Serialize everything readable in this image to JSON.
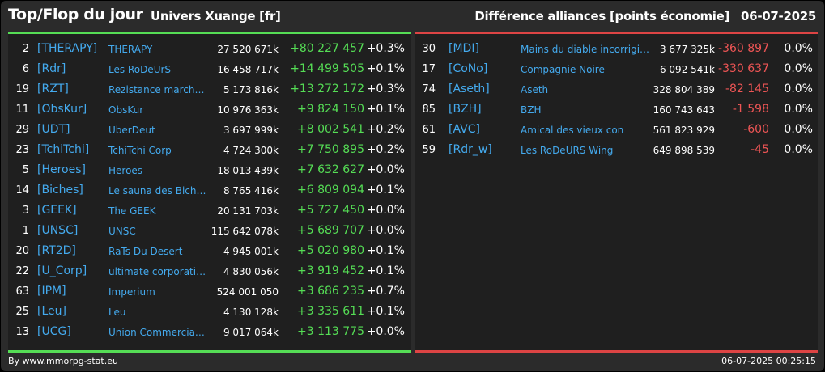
{
  "header": {
    "title": "Top/Flop du jour",
    "universe": "Univers Xuange [fr]",
    "subtitle": "Différence alliances [points économie]",
    "date": "06-07-2025"
  },
  "colors": {
    "top_accent": "#55dd55",
    "flop_accent": "#dd4444",
    "tag_link": "#44aaee",
    "positive": "#55dd55",
    "negative": "#ee5555"
  },
  "top": [
    {
      "rank": "2",
      "tag": "[THERAPY]",
      "name": "THERAPY",
      "points": "27 520 671k",
      "diff": "+80 227 457",
      "pct": "+0.3%"
    },
    {
      "rank": "6",
      "tag": "[Rdr]",
      "name": "Les RoDeUrS",
      "points": "16 458 717k",
      "diff": "+14 499 505",
      "pct": "+0.1%"
    },
    {
      "rank": "19",
      "tag": "[RZT]",
      "name": "Rezistance marchande",
      "points": "5 173 816k",
      "diff": "+13 272 172",
      "pct": "+0.3%"
    },
    {
      "rank": "11",
      "tag": "[ObsKur]",
      "name": "ObsKur",
      "points": "10 976 363k",
      "diff": "+9 824 150",
      "pct": "+0.1%"
    },
    {
      "rank": "29",
      "tag": "[UDT]",
      "name": "UberDeut",
      "points": "3 697 999k",
      "diff": "+8 002 541",
      "pct": "+0.2%"
    },
    {
      "rank": "23",
      "tag": "[TchiTchi]",
      "name": "TchiTchi Corp",
      "points": "4 724 300k",
      "diff": "+7 750 895",
      "pct": "+0.2%"
    },
    {
      "rank": "5",
      "tag": "[Heroes]",
      "name": "Heroes",
      "points": "18 013 439k",
      "diff": "+7 632 627",
      "pct": "+0.0%"
    },
    {
      "rank": "14",
      "tag": "[Biches]",
      "name": "Le sauna des Biches",
      "points": "8 765 416k",
      "diff": "+6 809 094",
      "pct": "+0.1%"
    },
    {
      "rank": "3",
      "tag": "[GEEK]",
      "name": "The GEEK",
      "points": "20 131 703k",
      "diff": "+5 727 450",
      "pct": "+0.0%"
    },
    {
      "rank": "1",
      "tag": "[UNSC]",
      "name": "UNSC",
      "points": "115 642 078k",
      "diff": "+5 689 707",
      "pct": "+0.0%"
    },
    {
      "rank": "20",
      "tag": "[RT2D]",
      "name": "RaTs Du Desert",
      "points": "4 945 001k",
      "diff": "+5 020 980",
      "pct": "+0.1%"
    },
    {
      "rank": "22",
      "tag": "[U_Corp]",
      "name": "ultimate corporation",
      "points": "4 830 056k",
      "diff": "+3 919 452",
      "pct": "+0.1%"
    },
    {
      "rank": "63",
      "tag": "[IPM]",
      "name": "Imperium",
      "points": "524 001 050",
      "diff": "+3 686 235",
      "pct": "+0.7%"
    },
    {
      "rank": "25",
      "tag": "[Leu]",
      "name": "Leu",
      "points": "4 130 128k",
      "diff": "+3 335 611",
      "pct": "+0.1%"
    },
    {
      "rank": "13",
      "tag": "[UCG]",
      "name": "Union Commerciale Galactique",
      "points": "9 017 064k",
      "diff": "+3 113 775",
      "pct": "+0.0%"
    }
  ],
  "flop": [
    {
      "rank": "30",
      "tag": "[MDI]",
      "name": "Mains du diable incorrigibles",
      "points": "3 677 325k",
      "diff": "-360 897",
      "pct": "0.0%"
    },
    {
      "rank": "17",
      "tag": "[CoNo]",
      "name": "Compagnie Noire",
      "points": "6 092 541k",
      "diff": "-330 637",
      "pct": "0.0%"
    },
    {
      "rank": "74",
      "tag": "[Aseth]",
      "name": "Aseth",
      "points": "328 804 389",
      "diff": "-82 145",
      "pct": "0.0%"
    },
    {
      "rank": "85",
      "tag": "[BZH]",
      "name": "BZH",
      "points": "160 743 643",
      "diff": "-1 598",
      "pct": "0.0%"
    },
    {
      "rank": "61",
      "tag": "[AVC]",
      "name": "Amical des vieux con",
      "points": "561 823 929",
      "diff": "-600",
      "pct": "0.0%"
    },
    {
      "rank": "59",
      "tag": "[Rdr_w]",
      "name": "Les RoDeURS Wing",
      "points": "649 898 539",
      "diff": "-45",
      "pct": "0.0%"
    }
  ],
  "footer": {
    "credit": "By www.mmorpg-stat.eu",
    "timestamp": "06-07-2025 00:25:15"
  }
}
